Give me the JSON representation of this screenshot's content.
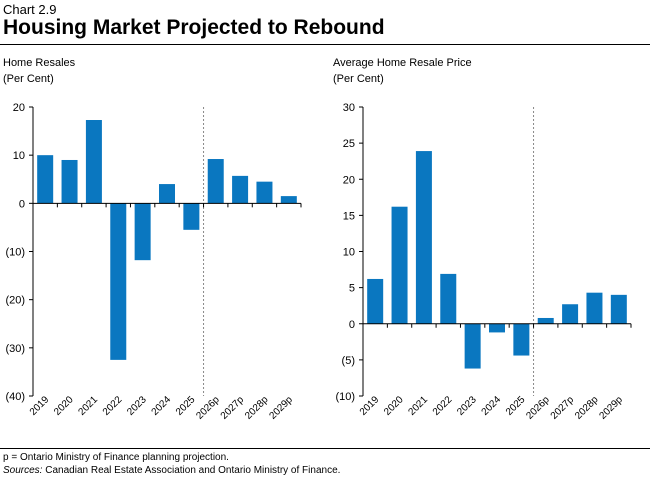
{
  "header": {
    "chart_number": "Chart 2.9",
    "title": "Housing Market Projected to Rebound"
  },
  "footnotes": {
    "note": "p = Ontario Ministry of Finance planning projection.",
    "sources_label": "Sources:",
    "sources_text": "Canadian Real Estate Association and Ontario Ministry of Finance."
  },
  "colors": {
    "bar": "#0a77c0",
    "axis": "#000000",
    "divider": "#888888"
  },
  "chart_data": [
    {
      "type": "bar",
      "title": "Home Resales",
      "subtitle": "(Per Cent)",
      "categories": [
        "2019",
        "2020",
        "2021",
        "2022",
        "2023",
        "2024",
        "2025",
        "2026p",
        "2027p",
        "2028p",
        "2029p"
      ],
      "values": [
        10.0,
        9.0,
        17.3,
        -32.5,
        -11.8,
        4.0,
        -5.5,
        9.2,
        5.7,
        4.5,
        1.5
      ],
      "ylim": [
        -40,
        20
      ],
      "yticks": [
        20,
        10,
        0,
        -10,
        -20,
        -30,
        -40
      ],
      "ytick_labels": [
        "20",
        "10",
        "0",
        "(10)",
        "(20)",
        "(30)",
        "(40)"
      ],
      "projection_start_category": "2026p"
    },
    {
      "type": "bar",
      "title": "Average Home Resale Price",
      "subtitle": "(Per Cent)",
      "categories": [
        "2019",
        "2020",
        "2021",
        "2022",
        "2023",
        "2024",
        "2025",
        "2026p",
        "2027p",
        "2028p",
        "2029p"
      ],
      "values": [
        6.2,
        16.2,
        23.9,
        6.9,
        -6.2,
        -1.2,
        -4.4,
        0.8,
        2.7,
        4.3,
        4.0
      ],
      "ylim": [
        -10,
        30
      ],
      "yticks": [
        30,
        25,
        20,
        15,
        10,
        5,
        0,
        -5,
        -10
      ],
      "ytick_labels": [
        "30",
        "25",
        "20",
        "15",
        "10",
        "5",
        "0",
        "(5)",
        "(10)"
      ],
      "projection_start_category": "2026p"
    }
  ]
}
